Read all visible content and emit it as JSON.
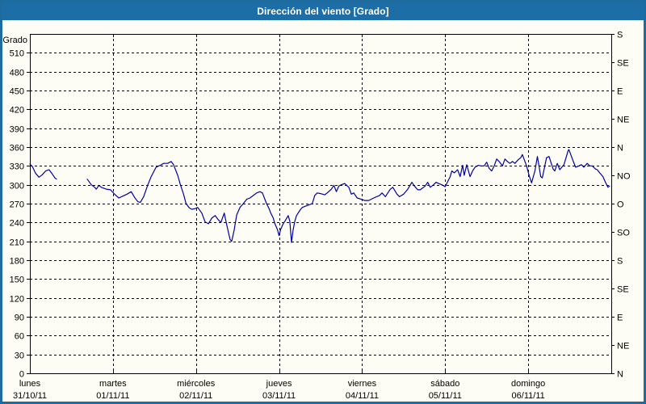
{
  "window": {
    "title": "Dirección del viento [Grado]"
  },
  "colors": {
    "titlebar_bg": "#1d6da6",
    "titlebar_text": "#ffffff",
    "window_border": "#1e6c9f",
    "plot_bg": "#fdfdf6",
    "grid": "#000000",
    "axis": "#000000",
    "text": "#000000",
    "line": "#0000a0"
  },
  "chart_data": {
    "type": "line",
    "title": "Dirección del viento [Grado]",
    "ylabel": "Grado",
    "ylim": [
      0,
      540
    ],
    "y_tick_step": 30,
    "grid": true,
    "legend": "none",
    "left_axis_ticks": [
      "0",
      "30",
      "60",
      "90",
      "120",
      "150",
      "180",
      "210",
      "240",
      "270",
      "300",
      "330",
      "360",
      "390",
      "420",
      "450",
      "480",
      "510"
    ],
    "right_axis_compass": [
      {
        "deg": 0,
        "label": "N"
      },
      {
        "deg": 45,
        "label": "NE"
      },
      {
        "deg": 90,
        "label": "E"
      },
      {
        "deg": 135,
        "label": "SE"
      },
      {
        "deg": 180,
        "label": "S"
      },
      {
        "deg": 225,
        "label": "SO"
      },
      {
        "deg": 270,
        "label": "O"
      },
      {
        "deg": 315,
        "label": "NO"
      },
      {
        "deg": 360,
        "label": "N"
      },
      {
        "deg": 405,
        "label": "NE"
      },
      {
        "deg": 450,
        "label": "E"
      },
      {
        "deg": 495,
        "label": "SE"
      },
      {
        "deg": 540,
        "label": "S"
      }
    ],
    "x_range_days": [
      0,
      7
    ],
    "x_axis_days": [
      {
        "name": "lunes",
        "date": "31/10/11"
      },
      {
        "name": "martes",
        "date": "01/11/11"
      },
      {
        "name": "miércoles",
        "date": "02/11/11"
      },
      {
        "name": "jueves",
        "date": "03/11/11"
      },
      {
        "name": "viernes",
        "date": "04/11/11"
      },
      {
        "name": "sábado",
        "date": "05/11/11"
      },
      {
        "name": "domingo",
        "date": "06/11/11"
      }
    ],
    "series": [
      {
        "name": "Dirección del viento",
        "color": "#0000a0",
        "segments": [
          [
            [
              0.0,
              333
            ],
            [
              0.03,
              329
            ],
            [
              0.07,
              318
            ],
            [
              0.11,
              312
            ],
            [
              0.15,
              316
            ],
            [
              0.19,
              322
            ],
            [
              0.23,
              324
            ],
            [
              0.27,
              317
            ],
            [
              0.3,
              311
            ],
            [
              0.32,
              309
            ]
          ],
          [
            [
              0.69,
              309
            ],
            [
              0.74,
              300
            ],
            [
              0.78,
              296
            ],
            [
              0.8,
              293
            ],
            [
              0.83,
              299
            ],
            [
              0.86,
              296
            ],
            [
              0.92,
              293
            ],
            [
              0.97,
              292
            ],
            [
              1.02,
              285
            ],
            [
              1.07,
              279
            ],
            [
              1.12,
              282
            ],
            [
              1.17,
              285
            ],
            [
              1.22,
              289
            ],
            [
              1.26,
              280
            ],
            [
              1.3,
              273
            ],
            [
              1.33,
              272
            ],
            [
              1.37,
              281
            ],
            [
              1.42,
              300
            ],
            [
              1.46,
              313
            ],
            [
              1.52,
              328
            ],
            [
              1.57,
              331
            ],
            [
              1.61,
              334
            ],
            [
              1.66,
              334
            ],
            [
              1.7,
              337
            ],
            [
              1.73,
              332
            ],
            [
              1.78,
              315
            ],
            [
              1.81,
              301
            ],
            [
              1.85,
              285
            ],
            [
              1.88,
              270
            ],
            [
              1.92,
              263
            ],
            [
              1.95,
              261
            ],
            [
              1.99,
              262
            ],
            [
              2.02,
              264
            ],
            [
              2.07,
              255
            ],
            [
              2.11,
              241
            ],
            [
              2.15,
              238
            ],
            [
              2.19,
              247
            ],
            [
              2.23,
              251
            ],
            [
              2.27,
              244
            ],
            [
              2.3,
              240
            ],
            [
              2.34,
              255
            ],
            [
              2.37,
              236
            ],
            [
              2.41,
              213
            ],
            [
              2.43,
              210
            ],
            [
              2.46,
              228
            ],
            [
              2.49,
              252
            ],
            [
              2.53,
              264
            ],
            [
              2.57,
              270
            ],
            [
              2.61,
              277
            ],
            [
              2.65,
              279
            ],
            [
              2.69,
              283
            ],
            [
              2.73,
              287
            ],
            [
              2.77,
              289
            ],
            [
              2.8,
              287
            ],
            [
              2.85,
              270
            ],
            [
              2.88,
              262
            ],
            [
              2.9,
              255
            ],
            [
              2.93,
              247
            ],
            [
              2.95,
              238
            ],
            [
              2.98,
              229
            ],
            [
              3.0,
              219
            ],
            [
              3.02,
              229
            ],
            [
              3.05,
              238
            ],
            [
              3.07,
              242
            ],
            [
              3.11,
              251
            ],
            [
              3.13,
              242
            ],
            [
              3.15,
              208
            ],
            [
              3.17,
              229
            ],
            [
              3.19,
              242
            ],
            [
              3.21,
              251
            ],
            [
              3.23,
              255
            ],
            [
              3.26,
              261
            ],
            [
              3.28,
              264
            ],
            [
              3.32,
              266
            ],
            [
              3.36,
              268
            ],
            [
              3.4,
              270
            ],
            [
              3.43,
              283
            ],
            [
              3.46,
              287
            ],
            [
              3.5,
              286
            ],
            [
              3.55,
              284
            ],
            [
              3.58,
              287
            ],
            [
              3.63,
              293
            ],
            [
              3.66,
              299
            ],
            [
              3.69,
              289
            ],
            [
              3.72,
              298
            ],
            [
              3.75,
              300
            ],
            [
              3.79,
              302
            ],
            [
              3.84,
              296
            ],
            [
              3.87,
              285
            ],
            [
              3.9,
              287
            ],
            [
              3.94,
              279
            ],
            [
              3.99,
              277
            ],
            [
              4.03,
              275
            ],
            [
              4.08,
              275
            ],
            [
              4.14,
              279
            ],
            [
              4.21,
              283
            ],
            [
              4.24,
              287
            ],
            [
              4.28,
              281
            ],
            [
              4.34,
              293
            ],
            [
              4.37,
              296
            ],
            [
              4.42,
              285
            ],
            [
              4.45,
              281
            ],
            [
              4.5,
              285
            ],
            [
              4.55,
              293
            ],
            [
              4.6,
              304
            ],
            [
              4.63,
              298
            ],
            [
              4.67,
              292
            ],
            [
              4.7,
              292
            ],
            [
              4.76,
              298
            ],
            [
              4.79,
              304
            ],
            [
              4.82,
              296
            ],
            [
              4.86,
              300
            ],
            [
              4.89,
              304
            ],
            [
              4.92,
              302
            ],
            [
              4.96,
              300
            ],
            [
              5.0,
              297
            ],
            [
              5.06,
              313
            ],
            [
              5.08,
              322
            ],
            [
              5.11,
              319
            ],
            [
              5.15,
              324
            ],
            [
              5.18,
              313
            ],
            [
              5.21,
              331
            ],
            [
              5.23,
              315
            ],
            [
              5.26,
              332
            ],
            [
              5.3,
              313
            ],
            [
              5.33,
              322
            ],
            [
              5.36,
              328
            ],
            [
              5.4,
              331
            ],
            [
              5.43,
              330
            ],
            [
              5.47,
              330
            ],
            [
              5.5,
              336
            ],
            [
              5.53,
              326
            ],
            [
              5.56,
              322
            ],
            [
              5.59,
              330
            ],
            [
              5.62,
              341
            ],
            [
              5.65,
              337
            ],
            [
              5.69,
              330
            ],
            [
              5.72,
              341
            ],
            [
              5.75,
              337
            ],
            [
              5.78,
              334
            ],
            [
              5.81,
              337
            ],
            [
              5.84,
              334
            ],
            [
              5.88,
              340
            ],
            [
              5.91,
              343
            ],
            [
              5.93,
              348
            ],
            [
              5.98,
              330
            ],
            [
              6.01,
              315
            ],
            [
              6.04,
              303
            ],
            [
              6.08,
              322
            ],
            [
              6.11,
              345
            ],
            [
              6.13,
              330
            ],
            [
              6.15,
              313
            ],
            [
              6.17,
              311
            ],
            [
              6.22,
              343
            ],
            [
              6.25,
              345
            ],
            [
              6.3,
              325
            ],
            [
              6.32,
              322
            ],
            [
              6.35,
              334
            ],
            [
              6.38,
              324
            ],
            [
              6.43,
              332
            ],
            [
              6.48,
              354
            ],
            [
              6.49,
              356
            ],
            [
              6.54,
              338
            ],
            [
              6.57,
              328
            ],
            [
              6.61,
              330
            ],
            [
              6.64,
              332
            ],
            [
              6.67,
              328
            ],
            [
              6.71,
              334
            ],
            [
              6.74,
              330
            ],
            [
              6.77,
              330
            ],
            [
              6.81,
              325
            ],
            [
              6.83,
              324
            ],
            [
              6.86,
              319
            ],
            [
              6.9,
              313
            ],
            [
              6.93,
              304
            ],
            [
              6.96,
              296
            ],
            [
              6.98,
              298
            ]
          ]
        ]
      }
    ]
  }
}
